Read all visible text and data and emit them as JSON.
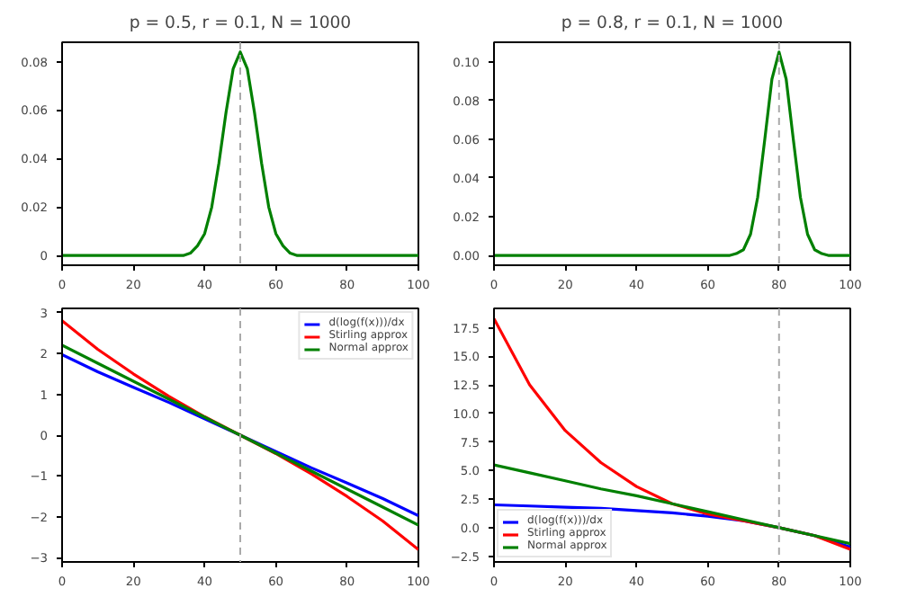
{
  "chart_data": [
    {
      "type": "line",
      "title": "p = 0.5, r = 0.1, N = 1000",
      "x": [
        0,
        30,
        34,
        36,
        38,
        40,
        42,
        44,
        46,
        48,
        50,
        52,
        54,
        56,
        58,
        60,
        62,
        64,
        66,
        70,
        100
      ],
      "series": [
        {
          "color": "#008000",
          "values": [
            0,
            0,
            0.0,
            0.001,
            0.004,
            0.009,
            0.02,
            0.038,
            0.059,
            0.077,
            0.084,
            0.077,
            0.059,
            0.038,
            0.02,
            0.009,
            0.004,
            0.001,
            0.0,
            0,
            0
          ]
        }
      ],
      "xlim": [
        0,
        100
      ],
      "xticks": [
        0,
        20,
        40,
        60,
        80,
        100
      ],
      "ylim": [
        -0.004,
        0.088
      ],
      "yticks": [
        0.0,
        {
          "value": 0.02,
          "label": "0.02"
        },
        {
          "value": 0.04,
          "label": "0.04"
        },
        {
          "value": 0.06,
          "label": "0.06"
        },
        {
          "value": 0.08,
          "label": "0.08"
        }
      ],
      "ref_lines": [
        {
          "axis": "x",
          "value": 50,
          "color": "#aaaaaa",
          "line_style": "dashed"
        }
      ]
    },
    {
      "type": "line",
      "title": "p = 0.8, r = 0.1, N = 1000",
      "x": [
        0,
        60,
        66,
        68,
        70,
        72,
        74,
        76,
        78,
        80,
        82,
        84,
        86,
        88,
        90,
        92,
        94,
        100
      ],
      "series": [
        {
          "color": "#008000",
          "values": [
            0,
            0,
            0.0,
            0.001,
            0.003,
            0.011,
            0.03,
            0.06,
            0.091,
            0.105,
            0.091,
            0.06,
            0.03,
            0.011,
            0.003,
            0.001,
            0.0,
            0
          ]
        }
      ],
      "xlim": [
        0,
        100
      ],
      "xticks": [
        0,
        20,
        40,
        60,
        80,
        100
      ],
      "ylim": [
        -0.005,
        0.11
      ],
      "yticks": [
        {
          "value": 0,
          "label": "0.00"
        },
        {
          "value": 0.02,
          "label": "0.02"
        },
        {
          "value": 0.04,
          "label": "0.04"
        },
        {
          "value": 0.06,
          "label": "0.06"
        },
        {
          "value": 0.08,
          "label": "0.08"
        },
        {
          "value": 0.1,
          "label": "0.10"
        }
      ],
      "ref_lines": [
        {
          "axis": "x",
          "value": 80,
          "color": "#aaaaaa",
          "line_style": "dashed"
        }
      ]
    },
    {
      "type": "line",
      "x": [
        0,
        10,
        20,
        30,
        40,
        50,
        60,
        70,
        80,
        90,
        100
      ],
      "series": [
        {
          "name": "d(log(f(x)))/dx",
          "color": "#0000ff",
          "values": [
            1.97,
            1.55,
            1.17,
            0.8,
            0.4,
            0,
            -0.4,
            -0.8,
            -1.17,
            -1.55,
            -1.97
          ]
        },
        {
          "name": "Stirling approx",
          "color": "#ff0000",
          "values": [
            2.8,
            2.1,
            1.5,
            0.95,
            0.45,
            0,
            -0.45,
            -0.95,
            -1.5,
            -2.1,
            -2.8
          ]
        },
        {
          "name": "Normal approx",
          "color": "#008000",
          "values": [
            2.2,
            1.76,
            1.32,
            0.88,
            0.44,
            0,
            -0.44,
            -0.88,
            -1.32,
            -1.76,
            -2.2
          ]
        }
      ],
      "xlim": [
        0,
        100
      ],
      "xticks": [
        0,
        20,
        40,
        60,
        80,
        100
      ],
      "ylim": [
        -3.1,
        3.1
      ],
      "yticks": [
        -3,
        -2,
        -1,
        0,
        1,
        2,
        3
      ],
      "legend": "top right",
      "ref_lines": [
        {
          "axis": "x",
          "value": 50,
          "color": "#aaaaaa",
          "line_style": "dashed"
        }
      ]
    },
    {
      "type": "line",
      "x": [
        0,
        10,
        20,
        30,
        40,
        50,
        60,
        70,
        80,
        90,
        100
      ],
      "series": [
        {
          "name": "d(log(f(x)))/dx",
          "color": "#0000ff",
          "values": [
            2.0,
            1.9,
            1.8,
            1.7,
            1.5,
            1.3,
            1.0,
            0.6,
            0,
            -0.7,
            -1.7
          ]
        },
        {
          "name": "Stirling approx",
          "color": "#ff0000",
          "values": [
            18.3,
            12.5,
            8.5,
            5.7,
            3.6,
            2.1,
            1.2,
            0.6,
            0,
            -0.7,
            -1.9
          ]
        },
        {
          "name": "Normal approx",
          "color": "#008000",
          "values": [
            5.5,
            4.8,
            4.1,
            3.4,
            2.8,
            2.1,
            1.4,
            0.7,
            0,
            -0.7,
            -1.4
          ]
        }
      ],
      "xlim": [
        0,
        100
      ],
      "xticks": [
        0,
        20,
        40,
        60,
        80,
        100
      ],
      "ylim": [
        -3.0,
        19.2
      ],
      "yticks": [
        {
          "value": -2.5,
          "label": "−2.5"
        },
        {
          "value": 0,
          "label": "0.0"
        },
        {
          "value": 2.5,
          "label": "2.5"
        },
        {
          "value": 5,
          "label": "5.0"
        },
        {
          "value": 7.5,
          "label": "7.5"
        },
        {
          "value": 10,
          "label": "10.0"
        },
        {
          "value": 12.5,
          "label": "12.5"
        },
        {
          "value": 15,
          "label": "15.0"
        },
        {
          "value": 17.5,
          "label": "17.5"
        }
      ],
      "legend": "bottom left",
      "ref_lines": [
        {
          "axis": "x",
          "value": 80,
          "color": "#aaaaaa",
          "line_style": "dashed"
        }
      ]
    }
  ]
}
